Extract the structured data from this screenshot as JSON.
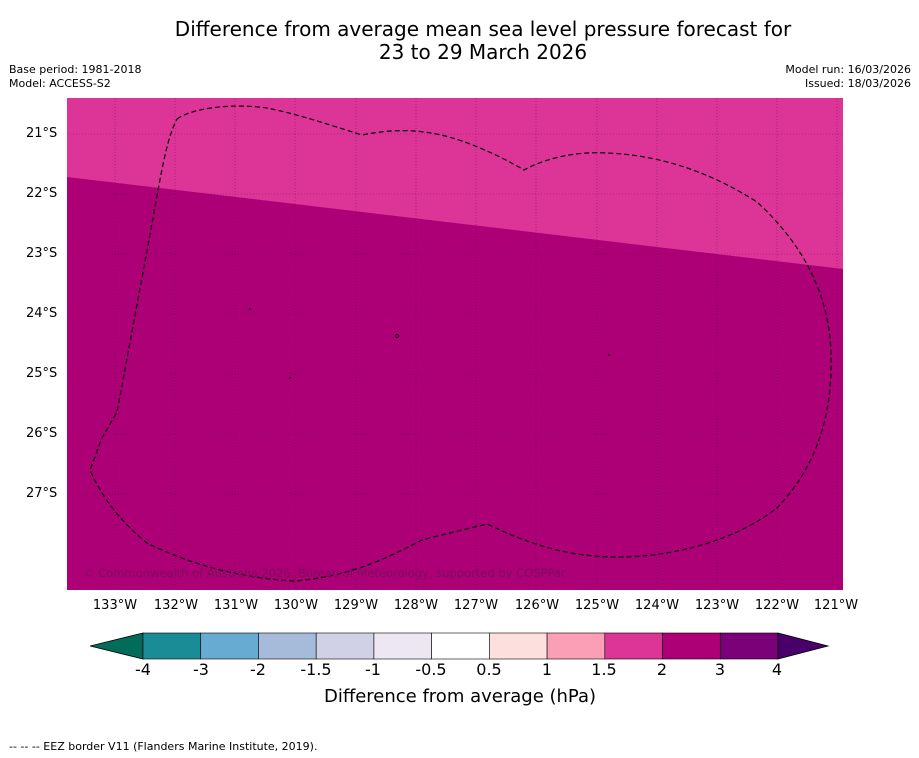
{
  "title": {
    "line1": "Difference from average mean sea level pressure forecast for",
    "line2": "23 to 29 March 2026"
  },
  "meta": {
    "base_period": "Base period: 1981-2018",
    "model": "Model: ACCESS-S2",
    "model_run": "Model run: 16/03/2026",
    "issued": "Issued: 18/03/2026"
  },
  "map": {
    "copyright": "© Commonwealth of Australia 2026, Bureau of Meteorology, supported by COSPPac",
    "lat_labels": [
      "21°S",
      "22°S",
      "23°S",
      "24°S",
      "25°S",
      "26°S",
      "27°S"
    ],
    "lon_labels": [
      "133°W",
      "132°W",
      "131°W",
      "130°W",
      "129°W",
      "128°W",
      "127°W",
      "126°W",
      "125°W",
      "124°W",
      "123°W",
      "122°W",
      "121°W"
    ],
    "colors": {
      "band_1_5_to_2": "#dd3497",
      "band_2_to_3": "#ad0077"
    }
  },
  "colorbar": {
    "label": "Difference from average (hPa)",
    "ticks": [
      "-4",
      "-3",
      "-2",
      "-1.5",
      "-1",
      "-0.5",
      "0.5",
      "1",
      "1.5",
      "2",
      "3",
      "4"
    ],
    "colors": [
      "#1a8c96",
      "#67aad2",
      "#a5bbd9",
      "#d0d1e6",
      "#ece7f2",
      "#ffffff",
      "#fde0dd",
      "#fa9fb5",
      "#dd3497",
      "#ad0077",
      "#7a0177"
    ],
    "under_color": "#016c59",
    "over_color": "#49006a"
  },
  "footnote": "--  --  -- EEZ border V11 (Flanders Marine Institute, 2019)."
}
